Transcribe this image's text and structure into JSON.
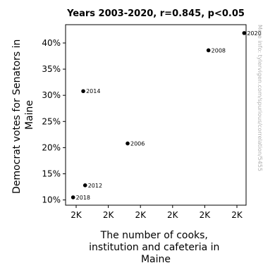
{
  "chart_data": {
    "type": "scatter",
    "title": "Years 2003-2020, r=0.845, p<0.05",
    "xlabel": [
      "The number of cooks,",
      "institution and cafeteria in",
      "Maine"
    ],
    "ylabel": [
      "Democrat votes for Senators in",
      "Maine"
    ],
    "x_tick_labels": [
      "2K",
      "2K",
      "2K",
      "2K",
      "2K",
      "2K"
    ],
    "y_ticks": [
      10,
      15,
      20,
      25,
      30,
      35,
      40
    ],
    "y_tick_suffix": "%",
    "ylim": [
      9,
      43.5
    ],
    "xlim": [
      1940,
      2420
    ],
    "points": [
      {
        "label": "2018",
        "x": 1960,
        "y": 10.5
      },
      {
        "label": "2012",
        "x": 1992,
        "y": 12.8
      },
      {
        "label": "2006",
        "x": 2105,
        "y": 20.8
      },
      {
        "label": "2014",
        "x": 1987,
        "y": 30.8
      },
      {
        "label": "2008",
        "x": 2320,
        "y": 38.6
      },
      {
        "label": "2020",
        "x": 2415,
        "y": 41.9
      }
    ],
    "point_color": "#000000",
    "grid": false
  },
  "watermark": "More info: tylervigen.com/spurious/correlation/5455"
}
